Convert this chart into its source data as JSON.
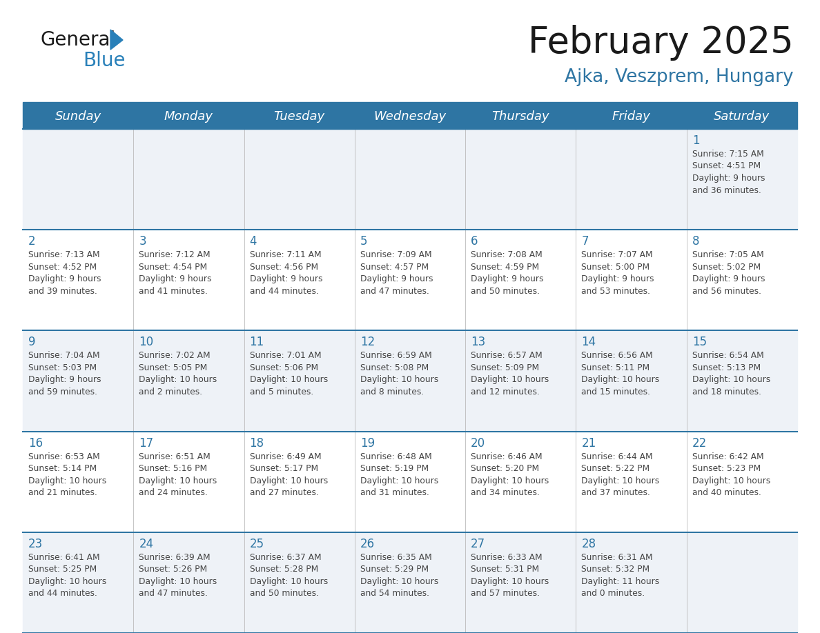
{
  "title": "February 2025",
  "subtitle": "Ajka, Veszprem, Hungary",
  "header_bg_color": "#2e75a3",
  "header_text_color": "#ffffff",
  "cell_bg_row0": "#eef2f7",
  "cell_bg_row1": "#ffffff",
  "cell_bg_row2": "#eef2f7",
  "cell_bg_row3": "#ffffff",
  "cell_bg_row4": "#eef2f7",
  "grid_line_color": "#2e75a3",
  "day_number_color": "#2e75a3",
  "cell_text_color": "#444444",
  "days_of_week": [
    "Sunday",
    "Monday",
    "Tuesday",
    "Wednesday",
    "Thursday",
    "Friday",
    "Saturday"
  ],
  "title_color": "#1a1a1a",
  "subtitle_color": "#2e75a3",
  "logo_general_color": "#1a1a1a",
  "logo_blue_color": "#2980b9",
  "calendar_data": [
    [
      null,
      null,
      null,
      null,
      null,
      null,
      {
        "day": "1",
        "sunrise": "7:15 AM",
        "sunset": "4:51 PM",
        "daylight": "9 hours",
        "daylight2": "and 36 minutes."
      }
    ],
    [
      {
        "day": "2",
        "sunrise": "7:13 AM",
        "sunset": "4:52 PM",
        "daylight": "9 hours",
        "daylight2": "and 39 minutes."
      },
      {
        "day": "3",
        "sunrise": "7:12 AM",
        "sunset": "4:54 PM",
        "daylight": "9 hours",
        "daylight2": "and 41 minutes."
      },
      {
        "day": "4",
        "sunrise": "7:11 AM",
        "sunset": "4:56 PM",
        "daylight": "9 hours",
        "daylight2": "and 44 minutes."
      },
      {
        "day": "5",
        "sunrise": "7:09 AM",
        "sunset": "4:57 PM",
        "daylight": "9 hours",
        "daylight2": "and 47 minutes."
      },
      {
        "day": "6",
        "sunrise": "7:08 AM",
        "sunset": "4:59 PM",
        "daylight": "9 hours",
        "daylight2": "and 50 minutes."
      },
      {
        "day": "7",
        "sunrise": "7:07 AM",
        "sunset": "5:00 PM",
        "daylight": "9 hours",
        "daylight2": "and 53 minutes."
      },
      {
        "day": "8",
        "sunrise": "7:05 AM",
        "sunset": "5:02 PM",
        "daylight": "9 hours",
        "daylight2": "and 56 minutes."
      }
    ],
    [
      {
        "day": "9",
        "sunrise": "7:04 AM",
        "sunset": "5:03 PM",
        "daylight": "9 hours",
        "daylight2": "and 59 minutes."
      },
      {
        "day": "10",
        "sunrise": "7:02 AM",
        "sunset": "5:05 PM",
        "daylight": "10 hours",
        "daylight2": "and 2 minutes."
      },
      {
        "day": "11",
        "sunrise": "7:01 AM",
        "sunset": "5:06 PM",
        "daylight": "10 hours",
        "daylight2": "and 5 minutes."
      },
      {
        "day": "12",
        "sunrise": "6:59 AM",
        "sunset": "5:08 PM",
        "daylight": "10 hours",
        "daylight2": "and 8 minutes."
      },
      {
        "day": "13",
        "sunrise": "6:57 AM",
        "sunset": "5:09 PM",
        "daylight": "10 hours",
        "daylight2": "and 12 minutes."
      },
      {
        "day": "14",
        "sunrise": "6:56 AM",
        "sunset": "5:11 PM",
        "daylight": "10 hours",
        "daylight2": "and 15 minutes."
      },
      {
        "day": "15",
        "sunrise": "6:54 AM",
        "sunset": "5:13 PM",
        "daylight": "10 hours",
        "daylight2": "and 18 minutes."
      }
    ],
    [
      {
        "day": "16",
        "sunrise": "6:53 AM",
        "sunset": "5:14 PM",
        "daylight": "10 hours",
        "daylight2": "and 21 minutes."
      },
      {
        "day": "17",
        "sunrise": "6:51 AM",
        "sunset": "5:16 PM",
        "daylight": "10 hours",
        "daylight2": "and 24 minutes."
      },
      {
        "day": "18",
        "sunrise": "6:49 AM",
        "sunset": "5:17 PM",
        "daylight": "10 hours",
        "daylight2": "and 27 minutes."
      },
      {
        "day": "19",
        "sunrise": "6:48 AM",
        "sunset": "5:19 PM",
        "daylight": "10 hours",
        "daylight2": "and 31 minutes."
      },
      {
        "day": "20",
        "sunrise": "6:46 AM",
        "sunset": "5:20 PM",
        "daylight": "10 hours",
        "daylight2": "and 34 minutes."
      },
      {
        "day": "21",
        "sunrise": "6:44 AM",
        "sunset": "5:22 PM",
        "daylight": "10 hours",
        "daylight2": "and 37 minutes."
      },
      {
        "day": "22",
        "sunrise": "6:42 AM",
        "sunset": "5:23 PM",
        "daylight": "10 hours",
        "daylight2": "and 40 minutes."
      }
    ],
    [
      {
        "day": "23",
        "sunrise": "6:41 AM",
        "sunset": "5:25 PM",
        "daylight": "10 hours",
        "daylight2": "and 44 minutes."
      },
      {
        "day": "24",
        "sunrise": "6:39 AM",
        "sunset": "5:26 PM",
        "daylight": "10 hours",
        "daylight2": "and 47 minutes."
      },
      {
        "day": "25",
        "sunrise": "6:37 AM",
        "sunset": "5:28 PM",
        "daylight": "10 hours",
        "daylight2": "and 50 minutes."
      },
      {
        "day": "26",
        "sunrise": "6:35 AM",
        "sunset": "5:29 PM",
        "daylight": "10 hours",
        "daylight2": "and 54 minutes."
      },
      {
        "day": "27",
        "sunrise": "6:33 AM",
        "sunset": "5:31 PM",
        "daylight": "10 hours",
        "daylight2": "and 57 minutes."
      },
      {
        "day": "28",
        "sunrise": "6:31 AM",
        "sunset": "5:32 PM",
        "daylight": "11 hours",
        "daylight2": "and 0 minutes."
      },
      null
    ]
  ]
}
